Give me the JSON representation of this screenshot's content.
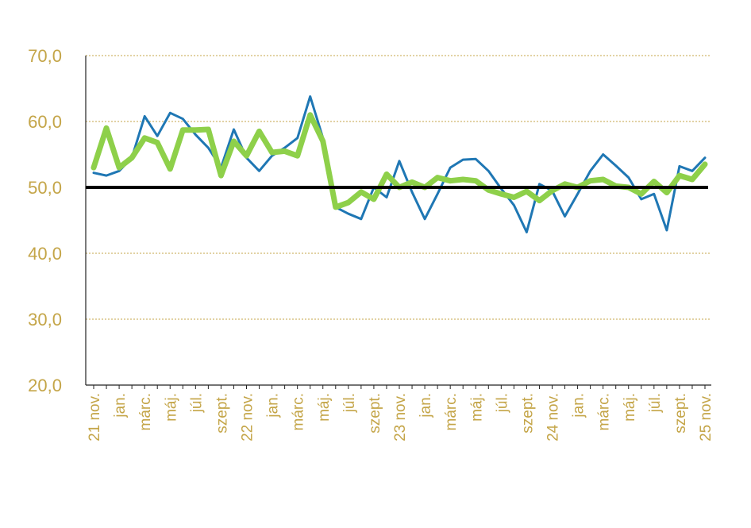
{
  "chart_data": {
    "type": "line",
    "ylim": [
      20,
      70
    ],
    "yticks": [
      "20,0",
      "30,0",
      "40,0",
      "50,0",
      "60,0",
      "70,0"
    ],
    "ytick_values": [
      20,
      30,
      40,
      50,
      60,
      70
    ],
    "grid": "horizontal dotted",
    "reference_line": 50,
    "x_tick_labels": [
      "21 nov.",
      "jan.",
      "márc.",
      "máj.",
      "júl.",
      "szept.",
      "22 nov.",
      "jan.",
      "márc.",
      "máj.",
      "júl.",
      "szept.",
      "23 nov.",
      "jan.",
      "márc.",
      "máj.",
      "júl.",
      "szept.",
      "24 nov.",
      "jan.",
      "márc.",
      "máj.",
      "júl.",
      "szept.",
      "25 nov."
    ],
    "x": [
      "21 nov.",
      "21 dec.",
      "22 jan.",
      "22 febr.",
      "22 márc.",
      "22 ápr.",
      "22 máj.",
      "22 jún.",
      "22 júl.",
      "22 aug.",
      "22 szept.",
      "22 okt.",
      "22 nov.",
      "22 dec.",
      "23 jan.",
      "23 febr.",
      "23 márc.",
      "23 ápr.",
      "23 máj.",
      "23 jún.",
      "23 júl.",
      "23 aug.",
      "23 szept.",
      "23 okt.",
      "23 nov.",
      "23 dec.",
      "24 jan.",
      "24 febr.",
      "24 márc.",
      "24 ápr.",
      "24 máj.",
      "24 jún.",
      "24 júl.",
      "24 aug.",
      "24 szept.",
      "24 okt.",
      "24 nov.",
      "24 dec.",
      "25 jan.",
      "25 febr.",
      "25 márc.",
      "25 ápr.",
      "25 máj.",
      "25 jún.",
      "25 júl.",
      "25 aug.",
      "25 szept.",
      "25 okt.",
      "25 nov."
    ],
    "series": [
      {
        "color": "#1f77b4",
        "values": [
          52.2,
          51.8,
          52.5,
          54.5,
          60.8,
          57.8,
          61.3,
          60.4,
          58.0,
          56.0,
          53.0,
          58.8,
          54.5,
          52.5,
          54.8,
          56.0,
          57.5,
          63.8,
          57.5,
          47.0,
          46.0,
          45.2,
          50.0,
          48.5,
          54.0,
          49.3,
          45.2,
          49.0,
          53.0,
          54.2,
          54.3,
          52.5,
          49.8,
          47.3,
          43.2,
          50.5,
          49.5,
          45.6,
          49.0,
          52.5,
          55.0,
          53.3,
          51.5,
          48.2,
          49.0,
          43.5,
          53.2,
          52.5,
          54.5
        ]
      },
      {
        "color": "#8ed04a",
        "values": [
          53.0,
          59.0,
          53.0,
          54.5,
          57.5,
          56.8,
          52.8,
          58.7,
          58.7,
          58.8,
          51.8,
          57.0,
          54.8,
          58.5,
          55.3,
          55.5,
          54.8,
          61.0,
          57.0,
          47.0,
          47.7,
          49.3,
          48.2,
          52.0,
          50.0,
          50.8,
          50.0,
          51.5,
          51.0,
          51.2,
          51.0,
          49.6,
          49.0,
          48.5,
          49.4,
          48.0,
          49.5,
          50.5,
          50.0,
          51.0,
          51.2,
          50.2,
          50.0,
          49.0,
          50.9,
          49.2,
          51.8,
          51.2,
          53.5
        ]
      }
    ]
  }
}
